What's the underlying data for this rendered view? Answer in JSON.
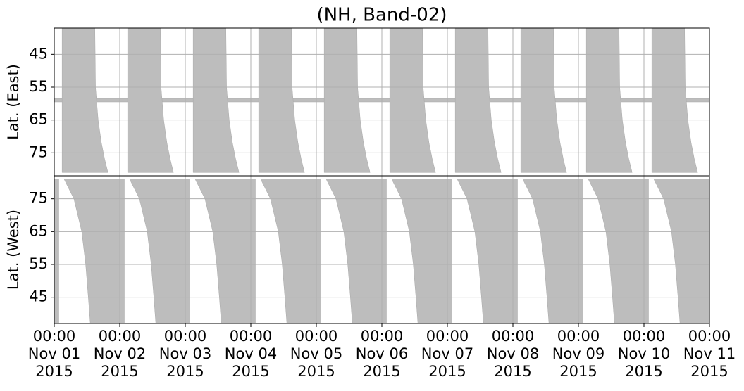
{
  "chart_data": [
    {
      "type": "area",
      "title": "(NH, Band-02)",
      "ylabel": "Lat. (East)",
      "color": "#bdbdbd",
      "grid": true,
      "xlim": [
        0,
        10
      ],
      "ylim": [
        82,
        37
      ],
      "yticks": [
        45,
        55,
        65,
        75
      ],
      "regions": [
        {
          "x": [
            0,
            10,
            10,
            0
          ],
          "y": [
            58.5,
            58.5,
            59.5,
            59.5
          ]
        },
        {
          "x": [
            0.12,
            0.62,
            0.63,
            0.67,
            0.72,
            0.77,
            0.82,
            0.12
          ],
          "y": [
            37,
            37,
            55,
            65,
            72,
            77,
            81,
            81
          ]
        },
        {
          "x": [
            1.12,
            1.62,
            1.63,
            1.67,
            1.72,
            1.77,
            1.82,
            1.12
          ],
          "y": [
            37,
            37,
            55,
            65,
            72,
            77,
            81,
            81
          ]
        },
        {
          "x": [
            2.12,
            2.62,
            2.63,
            2.67,
            2.72,
            2.77,
            2.82,
            2.12
          ],
          "y": [
            37,
            37,
            55,
            65,
            72,
            77,
            81,
            81
          ]
        },
        {
          "x": [
            3.12,
            3.62,
            3.63,
            3.67,
            3.72,
            3.77,
            3.82,
            3.12
          ],
          "y": [
            37,
            37,
            55,
            65,
            72,
            77,
            81,
            81
          ]
        },
        {
          "x": [
            4.12,
            4.62,
            4.63,
            4.67,
            4.72,
            4.77,
            4.82,
            4.12
          ],
          "y": [
            37,
            37,
            55,
            65,
            72,
            77,
            81,
            81
          ]
        },
        {
          "x": [
            5.12,
            5.62,
            5.63,
            5.67,
            5.72,
            5.77,
            5.82,
            5.12
          ],
          "y": [
            37,
            37,
            55,
            65,
            72,
            77,
            81,
            81
          ]
        },
        {
          "x": [
            6.12,
            6.62,
            6.63,
            6.67,
            6.72,
            6.77,
            6.82,
            6.12
          ],
          "y": [
            37,
            37,
            55,
            65,
            72,
            77,
            81,
            81
          ]
        },
        {
          "x": [
            7.12,
            7.62,
            7.63,
            7.67,
            7.72,
            7.77,
            7.82,
            7.12
          ],
          "y": [
            37,
            37,
            55,
            65,
            72,
            77,
            81,
            81
          ]
        },
        {
          "x": [
            8.12,
            8.62,
            8.63,
            8.67,
            8.72,
            8.77,
            8.82,
            8.12
          ],
          "y": [
            37,
            37,
            55,
            65,
            72,
            77,
            81,
            81
          ]
        },
        {
          "x": [
            9.12,
            9.62,
            9.63,
            9.67,
            9.72,
            9.77,
            9.82,
            9.12
          ],
          "y": [
            37,
            37,
            55,
            65,
            72,
            77,
            81,
            81
          ]
        }
      ]
    },
    {
      "type": "area",
      "ylabel": "Lat. (West)",
      "color": "#bdbdbd",
      "grid": true,
      "xlim": [
        0,
        10
      ],
      "ylim": [
        37,
        82
      ],
      "yticks": [
        45,
        55,
        65,
        75
      ],
      "xticks": [
        {
          "value": 0,
          "label": "00:00\nNov 01\n2015"
        },
        {
          "value": 1,
          "label": "00:00\nNov 02\n2015"
        },
        {
          "value": 2,
          "label": "00:00\nNov 03\n2015"
        },
        {
          "value": 3,
          "label": "00:00\nNov 04\n2015"
        },
        {
          "value": 4,
          "label": "00:00\nNov 05\n2015"
        },
        {
          "value": 5,
          "label": "00:00\nNov 06\n2015"
        },
        {
          "value": 6,
          "label": "00:00\nNov 07\n2015"
        },
        {
          "value": 7,
          "label": "00:00\nNov 08\n2015"
        },
        {
          "value": 8,
          "label": "00:00\nNov 09\n2015"
        },
        {
          "value": 9,
          "label": "00:00\nNov 10\n2015"
        },
        {
          "value": 10,
          "label": "00:00\nNov 11\n2015"
        }
      ],
      "regions": [
        {
          "x": [
            0,
            0.07,
            0.07,
            0
          ],
          "y": [
            81,
            81,
            37,
            37
          ]
        },
        {
          "x": [
            0.15,
            0.3,
            0.42,
            0.48,
            0.52,
            0.55,
            1.07,
            1.07
          ],
          "y": [
            81,
            75,
            65,
            55,
            45,
            37,
            37,
            81
          ]
        },
        {
          "x": [
            1.15,
            1.3,
            1.42,
            1.48,
            1.52,
            1.55,
            2.07,
            2.07
          ],
          "y": [
            81,
            75,
            65,
            55,
            45,
            37,
            37,
            81
          ]
        },
        {
          "x": [
            2.15,
            2.3,
            2.42,
            2.48,
            2.52,
            2.55,
            3.07,
            3.07
          ],
          "y": [
            81,
            75,
            65,
            55,
            45,
            37,
            37,
            81
          ]
        },
        {
          "x": [
            3.15,
            3.3,
            3.42,
            3.48,
            3.52,
            3.55,
            4.07,
            4.07
          ],
          "y": [
            81,
            75,
            65,
            55,
            45,
            37,
            37,
            81
          ]
        },
        {
          "x": [
            4.15,
            4.3,
            4.42,
            4.48,
            4.52,
            4.55,
            5.07,
            5.07
          ],
          "y": [
            81,
            75,
            65,
            55,
            45,
            37,
            37,
            81
          ]
        },
        {
          "x": [
            5.15,
            5.3,
            5.42,
            5.48,
            5.52,
            5.55,
            6.07,
            6.07
          ],
          "y": [
            81,
            75,
            65,
            55,
            45,
            37,
            37,
            81
          ]
        },
        {
          "x": [
            6.15,
            6.3,
            6.42,
            6.48,
            6.52,
            6.55,
            7.07,
            7.07
          ],
          "y": [
            81,
            75,
            65,
            55,
            45,
            37,
            37,
            81
          ]
        },
        {
          "x": [
            7.15,
            7.3,
            7.42,
            7.48,
            7.52,
            7.55,
            8.07,
            8.07
          ],
          "y": [
            81,
            75,
            65,
            55,
            45,
            37,
            37,
            81
          ]
        },
        {
          "x": [
            8.15,
            8.3,
            8.42,
            8.48,
            8.52,
            8.55,
            9.07,
            9.07
          ],
          "y": [
            81,
            75,
            65,
            55,
            45,
            37,
            37,
            81
          ]
        },
        {
          "x": [
            9.15,
            9.3,
            9.42,
            9.48,
            9.52,
            9.55,
            10,
            10
          ],
          "y": [
            81,
            75,
            65,
            55,
            45,
            37,
            37,
            81
          ]
        }
      ]
    }
  ]
}
